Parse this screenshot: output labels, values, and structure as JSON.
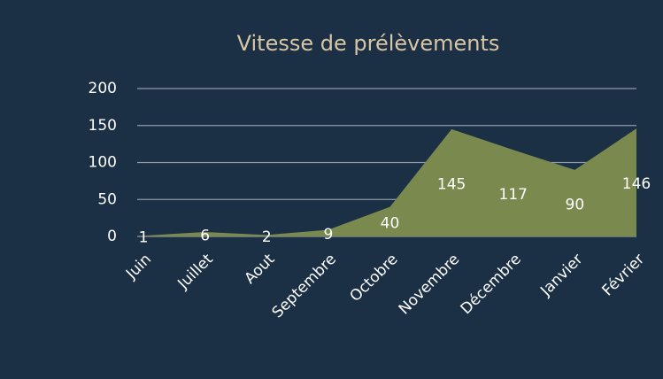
{
  "chart_data": {
    "type": "area",
    "title": "Vitesse de prélèvements",
    "categories": [
      "Juin",
      "Juillet",
      "Aout",
      "Septembre",
      "Octobre",
      "Novembre",
      "Décembre",
      "Janvier",
      "Février"
    ],
    "values": [
      1,
      6,
      2,
      9,
      40,
      145,
      117,
      90,
      146
    ],
    "color": "#7a8a4f",
    "ylim": [
      0,
      200
    ],
    "yticks": [
      0,
      50,
      100,
      150,
      200
    ],
    "grid": true
  }
}
